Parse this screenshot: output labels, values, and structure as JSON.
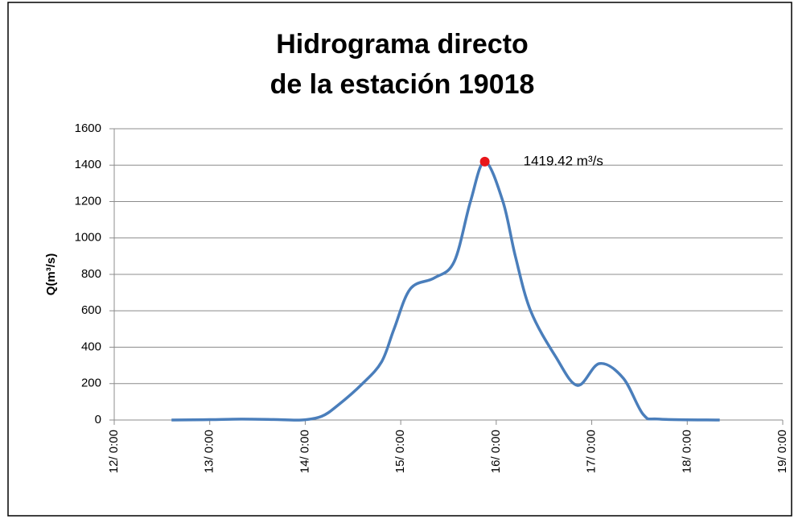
{
  "chart_data": {
    "type": "line",
    "title": [
      "Hidrograma directo",
      "de la estación 19018"
    ],
    "y_label": "Q(m³/s)",
    "x": [
      12.6,
      13.0,
      13.33,
      13.67,
      13.96,
      14.17,
      14.34,
      14.6,
      14.8,
      14.93,
      15.1,
      15.35,
      15.56,
      15.73,
      15.88,
      16.07,
      16.2,
      16.36,
      16.62,
      16.85,
      17.08,
      17.33,
      17.54,
      17.71,
      18.34
    ],
    "series": [
      {
        "name": "Q",
        "color": "#4a7ebb",
        "values": [
          0,
          2,
          5,
          3,
          0,
          20,
          80,
          200,
          320,
          500,
          720,
          780,
          870,
          1200,
          1419.42,
          1200,
          900,
          600,
          350,
          190,
          310,
          230,
          30,
          5,
          0
        ]
      }
    ],
    "peak": {
      "x": 15.88,
      "value": 1419.42,
      "label": "1419.42 m³/s",
      "color": "#e8161b"
    },
    "xlim": [
      12,
      19
    ],
    "xticks": [
      {
        "value": 12,
        "label": "12/ 0:00"
      },
      {
        "value": 13,
        "label": "13/ 0:00"
      },
      {
        "value": 14,
        "label": "14/ 0:00"
      },
      {
        "value": 15,
        "label": "15/ 0:00"
      },
      {
        "value": 16,
        "label": "16/ 0:00"
      },
      {
        "value": 17,
        "label": "17/ 0:00"
      },
      {
        "value": 18,
        "label": "18/ 0:00"
      },
      {
        "value": 19,
        "label": "19/ 0:00"
      }
    ],
    "ylim": [
      0,
      1600
    ],
    "yticks": [
      0,
      200,
      400,
      600,
      800,
      1000,
      1200,
      1400,
      1600
    ],
    "grid": true
  }
}
